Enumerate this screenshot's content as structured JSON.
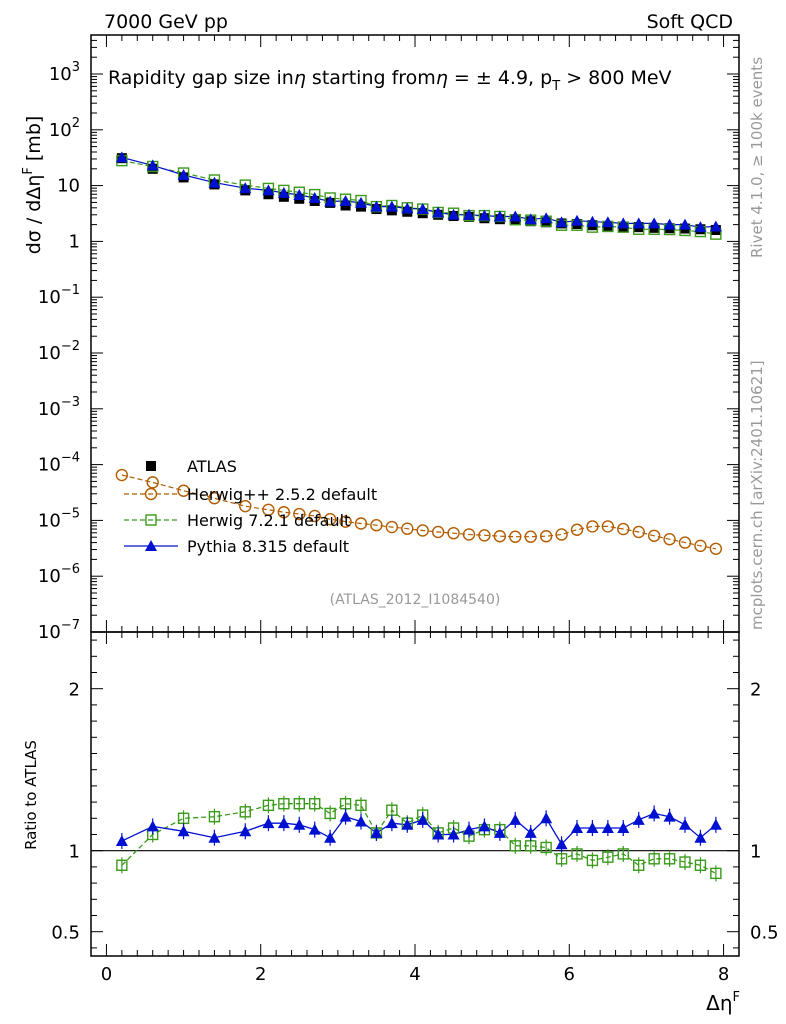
{
  "header": {
    "left": "7000 GeV pp",
    "right": "Soft QCD"
  },
  "side_text": {
    "rivet": "Rivet 4.1.0, ≥ 100k events",
    "mcplots": "mcplots.cern.ch [arXiv:2401.10621]"
  },
  "analysis_id": "(ATLAS_2012_I1084540)",
  "colors": {
    "atlas": "#000000",
    "herwigpp": "#b35c00",
    "herwig7": "#3a9a1a",
    "pythia": "#0010d0"
  },
  "chart_data": [
    {
      "type": "scatter",
      "panel": "main",
      "title_parts": {
        "pre": "Rapidity gap size in",
        "eta1": "η",
        "mid": " starting from",
        "eta2": "η",
        "eq": " = ± 4.9, p",
        "sub": "T",
        "post": " > 800 MeV"
      },
      "ylabel_parts": {
        "pre": "dσ / dΔη",
        "sup": "F",
        "post": " [mb]"
      },
      "yscale": "log",
      "ylim": [
        1e-07,
        5000
      ],
      "xlim": [
        -0.2,
        8.2
      ],
      "ytick_values": [
        1e-07,
        1e-06,
        1e-05,
        0.0001,
        0.001,
        0.01,
        0.1,
        1,
        10,
        100,
        1000
      ],
      "ytick_labels": [
        {
          "base": "10",
          "exp": "−7"
        },
        {
          "base": "10",
          "exp": "−6"
        },
        {
          "base": "10",
          "exp": "−5"
        },
        {
          "base": "10",
          "exp": "−4"
        },
        {
          "base": "10",
          "exp": "−3"
        },
        {
          "base": "10",
          "exp": "−2"
        },
        {
          "base": "10",
          "exp": "−1"
        },
        {
          "base": "1",
          "exp": ""
        },
        {
          "base": "10",
          "exp": ""
        },
        {
          "base": "10",
          "exp": "2"
        },
        {
          "base": "10",
          "exp": "3"
        }
      ],
      "x": [
        0.2,
        0.6,
        1.0,
        1.4,
        1.8,
        2.1,
        2.3,
        2.5,
        2.7,
        2.9,
        3.1,
        3.3,
        3.5,
        3.7,
        3.9,
        4.1,
        4.3,
        4.5,
        4.7,
        4.9,
        5.1,
        5.3,
        5.5,
        5.7,
        5.9,
        6.1,
        6.3,
        6.5,
        6.7,
        6.9,
        7.1,
        7.3,
        7.5,
        7.7,
        7.9
      ],
      "legend": [
        {
          "label": "ATLAS",
          "marker": "filled-square"
        },
        {
          "label": "Herwig++ 2.5.2 default",
          "marker": "open-circle",
          "line": "dashed"
        },
        {
          "label": "Herwig 7.2.1 default",
          "marker": "open-square",
          "line": "dashed"
        },
        {
          "label": "Pythia 8.315 default",
          "marker": "filled-triangle",
          "line": "solid"
        }
      ],
      "series": [
        {
          "name": "ATLAS",
          "values": [
            31,
            20,
            14,
            10.5,
            8.2,
            7.0,
            6.3,
            5.8,
            5.3,
            4.9,
            4.4,
            4.2,
            3.8,
            3.6,
            3.4,
            3.2,
            3.0,
            2.85,
            2.75,
            2.6,
            2.5,
            2.4,
            2.3,
            2.2,
            2.1,
            2.05,
            1.95,
            1.9,
            1.85,
            1.8,
            1.75,
            1.72,
            1.7,
            1.65,
            1.6
          ]
        },
        {
          "name": "Herwig++ 2.5.2 default",
          "values": [
            6.5e-05,
            4.8e-05,
            3.4e-05,
            2.5e-05,
            1.8e-05,
            1.55e-05,
            1.4e-05,
            1.3e-05,
            1.2e-05,
            1.05e-05,
            9.5e-06,
            8.8e-06,
            8.2e-06,
            7.6e-06,
            7.1e-06,
            6.6e-06,
            6.2e-06,
            5.9e-06,
            5.6e-06,
            5.4e-06,
            5.2e-06,
            5.1e-06,
            5.1e-06,
            5.2e-06,
            5.6e-06,
            6.8e-06,
            7.8e-06,
            7.8e-06,
            7e-06,
            6.2e-06,
            5.3e-06,
            4.6e-06,
            4e-06,
            3.5e-06,
            3.1e-06
          ]
        },
        {
          "name": "Herwig 7.2.1 default",
          "values": [
            28,
            22,
            16.8,
            12.6,
            10.2,
            8.9,
            8.2,
            7.6,
            6.9,
            6.0,
            5.7,
            5.4,
            4.2,
            4.4,
            4.0,
            3.8,
            3.3,
            3.2,
            2.9,
            2.9,
            2.8,
            2.45,
            2.4,
            2.3,
            1.95,
            1.95,
            1.8,
            1.85,
            1.8,
            1.65,
            1.65,
            1.63,
            1.57,
            1.5,
            1.35
          ]
        },
        {
          "name": "Pythia 8.315 default",
          "values": [
            32,
            23,
            15.5,
            11.3,
            9.0,
            8.2,
            7.4,
            6.8,
            6.0,
            5.2,
            5.3,
            4.9,
            4.2,
            4.2,
            3.9,
            3.8,
            3.3,
            3.0,
            3.0,
            2.9,
            2.8,
            2.8,
            2.5,
            2.6,
            2.2,
            2.35,
            2.25,
            2.2,
            2.1,
            2.1,
            2.1,
            2.0,
            2.0,
            1.8,
            1.85
          ]
        }
      ]
    },
    {
      "type": "scatter",
      "panel": "ratio",
      "ylabel": "Ratio to ATLAS",
      "xlabel_parts": {
        "pre": "Δη",
        "sup": "F"
      },
      "ylim": [
        0.35,
        2.35
      ],
      "xlim": [
        -0.2,
        8.2
      ],
      "ytick_labels": [
        "0.5",
        "1",
        "2"
      ],
      "ytick_values": [
        0.5,
        1,
        2
      ],
      "xtick_labels": [
        "0",
        "2",
        "4",
        "6",
        "8"
      ],
      "xtick_values": [
        0,
        2,
        4,
        6,
        8
      ],
      "reference_line": 1,
      "x": [
        0.2,
        0.6,
        1.0,
        1.4,
        1.8,
        2.1,
        2.3,
        2.5,
        2.7,
        2.9,
        3.1,
        3.3,
        3.5,
        3.7,
        3.9,
        4.1,
        4.3,
        4.5,
        4.7,
        4.9,
        5.1,
        5.3,
        5.5,
        5.7,
        5.9,
        6.1,
        6.3,
        6.5,
        6.7,
        6.9,
        7.1,
        7.3,
        7.5,
        7.7,
        7.9
      ],
      "series": [
        {
          "name": "Herwig 7.2.1 default",
          "values": [
            0.91,
            1.1,
            1.2,
            1.21,
            1.24,
            1.28,
            1.29,
            1.29,
            1.29,
            1.23,
            1.29,
            1.28,
            1.11,
            1.25,
            1.17,
            1.22,
            1.11,
            1.14,
            1.09,
            1.13,
            1.13,
            1.03,
            1.03,
            1.02,
            0.95,
            0.98,
            0.94,
            0.96,
            0.98,
            0.91,
            0.95,
            0.95,
            0.93,
            0.91,
            0.86
          ]
        },
        {
          "name": "Pythia 8.315 default",
          "values": [
            1.06,
            1.15,
            1.12,
            1.08,
            1.12,
            1.17,
            1.17,
            1.16,
            1.13,
            1.08,
            1.21,
            1.18,
            1.11,
            1.17,
            1.16,
            1.19,
            1.1,
            1.1,
            1.13,
            1.15,
            1.11,
            1.19,
            1.11,
            1.2,
            1.04,
            1.14,
            1.14,
            1.14,
            1.14,
            1.19,
            1.23,
            1.21,
            1.16,
            1.08,
            1.16
          ]
        }
      ]
    }
  ]
}
